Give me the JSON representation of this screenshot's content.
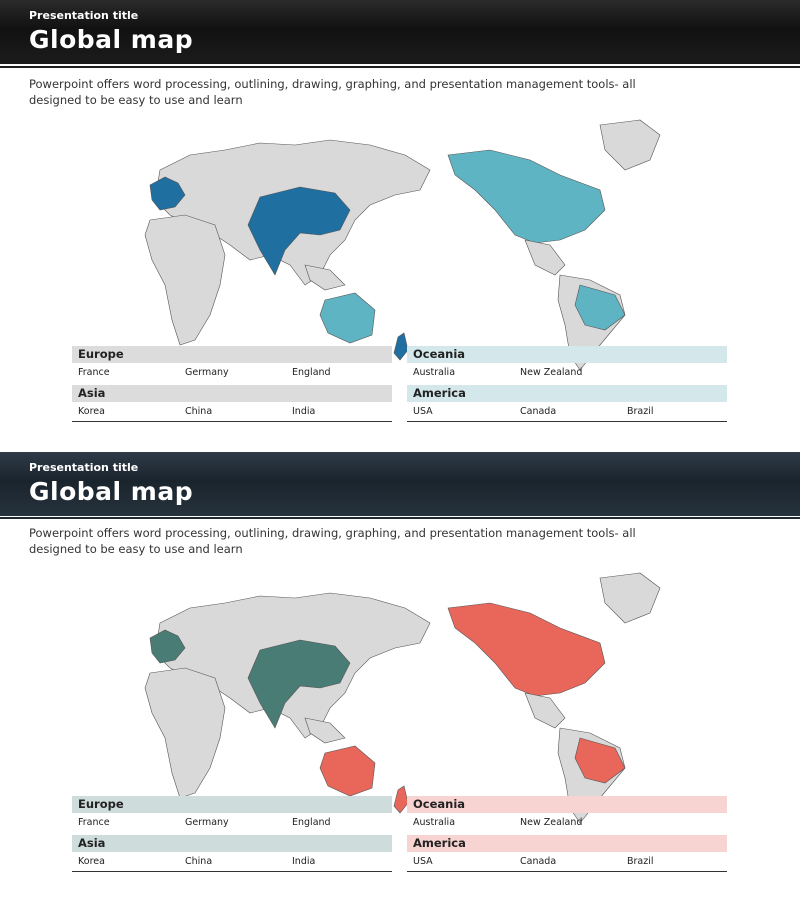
{
  "colors": {
    "slide1_europe": "#1f6fa0",
    "slide1_asia": "#1f6fa0",
    "slide1_oceania": "#5fb4c4",
    "slide1_america": "#5fb4c4",
    "slide2_europe": "#4a7c76",
    "slide2_asia": "#4a7c76",
    "slide2_oceania": "#e8675a",
    "slide2_america": "#e8675a",
    "land": "#d9d9d9"
  },
  "slides": [
    {
      "presentation_title": "Presentation title",
      "title": "Global map",
      "description": "Powerpoint offers word processing, outlining, drawing, graphing, and presentation management tools- all designed to be easy to use and learn",
      "groups": {
        "europe": {
          "name": "Europe",
          "countries": [
            "France",
            "Germany",
            "England"
          ]
        },
        "asia": {
          "name": "Asia",
          "countries": [
            "Korea",
            "China",
            "India"
          ]
        },
        "oceania": {
          "name": "Oceania",
          "countries": [
            "Australia",
            "New Zealand",
            ""
          ]
        },
        "america": {
          "name": "America",
          "countries": [
            "USA",
            "Canada",
            "Brazil"
          ]
        }
      }
    },
    {
      "presentation_title": "Presentation title",
      "title": "Global map",
      "description": "Powerpoint offers word processing, outlining, drawing, graphing, and presentation management tools- all designed to be easy to use and learn",
      "groups": {
        "europe": {
          "name": "Europe",
          "countries": [
            "France",
            "Germany",
            "England"
          ]
        },
        "asia": {
          "name": "Asia",
          "countries": [
            "Korea",
            "China",
            "India"
          ]
        },
        "oceania": {
          "name": "Oceania",
          "countries": [
            "Australia",
            "New Zealand",
            ""
          ]
        },
        "america": {
          "name": "America",
          "countries": [
            "USA",
            "Canada",
            "Brazil"
          ]
        }
      }
    }
  ]
}
